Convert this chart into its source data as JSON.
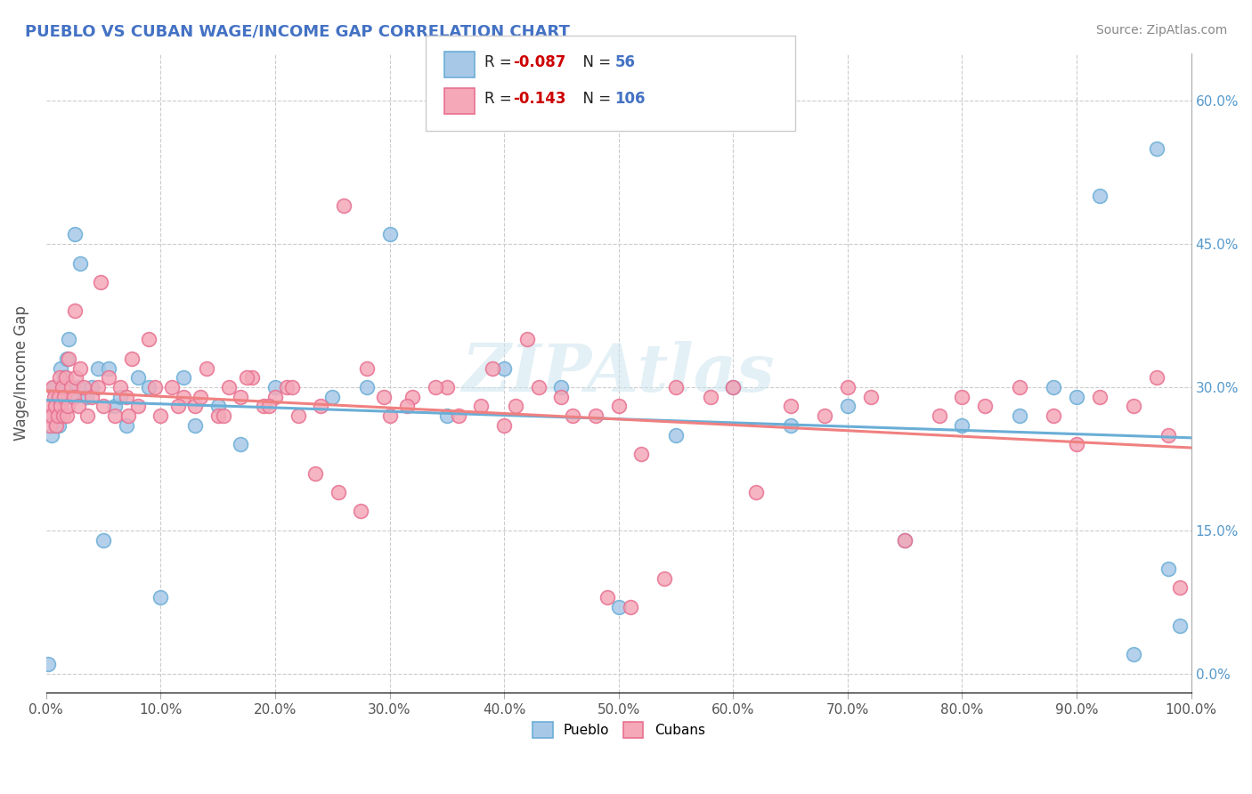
{
  "title": "PUEBLO VS CUBAN WAGE/INCOME GAP CORRELATION CHART",
  "source_text": "Source: ZipAtlas.com",
  "ylabel": "Wage/Income Gap",
  "title_color": "#4472c4",
  "watermark": "ZIPAtlas",
  "pueblo_R": -0.087,
  "pueblo_N": 56,
  "cuban_R": -0.143,
  "cuban_N": 106,
  "pueblo_color": "#a8c8e8",
  "cuban_color": "#f4a8b8",
  "pueblo_edge_color": "#6aaed6",
  "cuban_edge_color": "#e87090",
  "pueblo_line_color": "#6aaed6",
  "cuban_line_color": "#f08080",
  "R_color": "#cc0000",
  "N_color": "#4472c4",
  "xlim": [
    0.0,
    1.0
  ],
  "ylim": [
    -0.02,
    0.65
  ],
  "x_ticks": [
    0.0,
    0.1,
    0.2,
    0.3,
    0.4,
    0.5,
    0.6,
    0.7,
    0.8,
    0.9,
    1.0
  ],
  "y_ticks": [
    0.0,
    0.15,
    0.3,
    0.45,
    0.6
  ],
  "pueblo_x": [
    0.002,
    0.003,
    0.005,
    0.006,
    0.007,
    0.008,
    0.009,
    0.01,
    0.011,
    0.012,
    0.013,
    0.015,
    0.016,
    0.018,
    0.02,
    0.022,
    0.025,
    0.028,
    0.03,
    0.035,
    0.04,
    0.045,
    0.05,
    0.055,
    0.06,
    0.065,
    0.07,
    0.08,
    0.09,
    0.1,
    0.12,
    0.13,
    0.15,
    0.17,
    0.2,
    0.25,
    0.28,
    0.3,
    0.35,
    0.4,
    0.45,
    0.5,
    0.55,
    0.6,
    0.65,
    0.7,
    0.75,
    0.8,
    0.85,
    0.88,
    0.9,
    0.92,
    0.95,
    0.97,
    0.98,
    0.99
  ],
  "pueblo_y": [
    0.01,
    0.27,
    0.25,
    0.27,
    0.3,
    0.26,
    0.27,
    0.29,
    0.26,
    0.28,
    0.32,
    0.3,
    0.31,
    0.33,
    0.35,
    0.29,
    0.46,
    0.3,
    0.43,
    0.29,
    0.3,
    0.32,
    0.14,
    0.32,
    0.28,
    0.29,
    0.26,
    0.31,
    0.3,
    0.08,
    0.31,
    0.26,
    0.28,
    0.24,
    0.3,
    0.29,
    0.3,
    0.46,
    0.27,
    0.32,
    0.3,
    0.07,
    0.25,
    0.3,
    0.26,
    0.28,
    0.14,
    0.26,
    0.27,
    0.3,
    0.29,
    0.5,
    0.02,
    0.55,
    0.11,
    0.05
  ],
  "cuban_x": [
    0.001,
    0.003,
    0.004,
    0.005,
    0.006,
    0.007,
    0.008,
    0.009,
    0.01,
    0.011,
    0.012,
    0.013,
    0.014,
    0.015,
    0.016,
    0.017,
    0.018,
    0.019,
    0.02,
    0.022,
    0.024,
    0.026,
    0.028,
    0.03,
    0.033,
    0.036,
    0.04,
    0.045,
    0.05,
    0.055,
    0.06,
    0.065,
    0.07,
    0.075,
    0.08,
    0.09,
    0.1,
    0.11,
    0.12,
    0.13,
    0.14,
    0.15,
    0.16,
    0.17,
    0.18,
    0.19,
    0.2,
    0.21,
    0.22,
    0.24,
    0.26,
    0.28,
    0.3,
    0.32,
    0.35,
    0.38,
    0.4,
    0.42,
    0.45,
    0.48,
    0.5,
    0.52,
    0.55,
    0.58,
    0.6,
    0.62,
    0.65,
    0.68,
    0.7,
    0.72,
    0.75,
    0.78,
    0.8,
    0.82,
    0.85,
    0.88,
    0.9,
    0.92,
    0.95,
    0.97,
    0.98,
    0.99,
    0.025,
    0.048,
    0.072,
    0.095,
    0.115,
    0.135,
    0.155,
    0.175,
    0.195,
    0.215,
    0.235,
    0.255,
    0.275,
    0.295,
    0.315,
    0.34,
    0.36,
    0.39,
    0.41,
    0.43,
    0.46,
    0.49,
    0.51,
    0.54
  ],
  "cuban_y": [
    0.27,
    0.26,
    0.28,
    0.27,
    0.3,
    0.29,
    0.28,
    0.26,
    0.27,
    0.29,
    0.31,
    0.28,
    0.3,
    0.27,
    0.29,
    0.31,
    0.27,
    0.28,
    0.33,
    0.3,
    0.29,
    0.31,
    0.28,
    0.32,
    0.3,
    0.27,
    0.29,
    0.3,
    0.28,
    0.31,
    0.27,
    0.3,
    0.29,
    0.33,
    0.28,
    0.35,
    0.27,
    0.3,
    0.29,
    0.28,
    0.32,
    0.27,
    0.3,
    0.29,
    0.31,
    0.28,
    0.29,
    0.3,
    0.27,
    0.28,
    0.49,
    0.32,
    0.27,
    0.29,
    0.3,
    0.28,
    0.26,
    0.35,
    0.29,
    0.27,
    0.28,
    0.23,
    0.3,
    0.29,
    0.3,
    0.19,
    0.28,
    0.27,
    0.3,
    0.29,
    0.14,
    0.27,
    0.29,
    0.28,
    0.3,
    0.27,
    0.24,
    0.29,
    0.28,
    0.31,
    0.25,
    0.09,
    0.38,
    0.41,
    0.27,
    0.3,
    0.28,
    0.29,
    0.27,
    0.31,
    0.28,
    0.3,
    0.21,
    0.19,
    0.17,
    0.29,
    0.28,
    0.3,
    0.27,
    0.32,
    0.28,
    0.3,
    0.27,
    0.08,
    0.07,
    0.1
  ]
}
